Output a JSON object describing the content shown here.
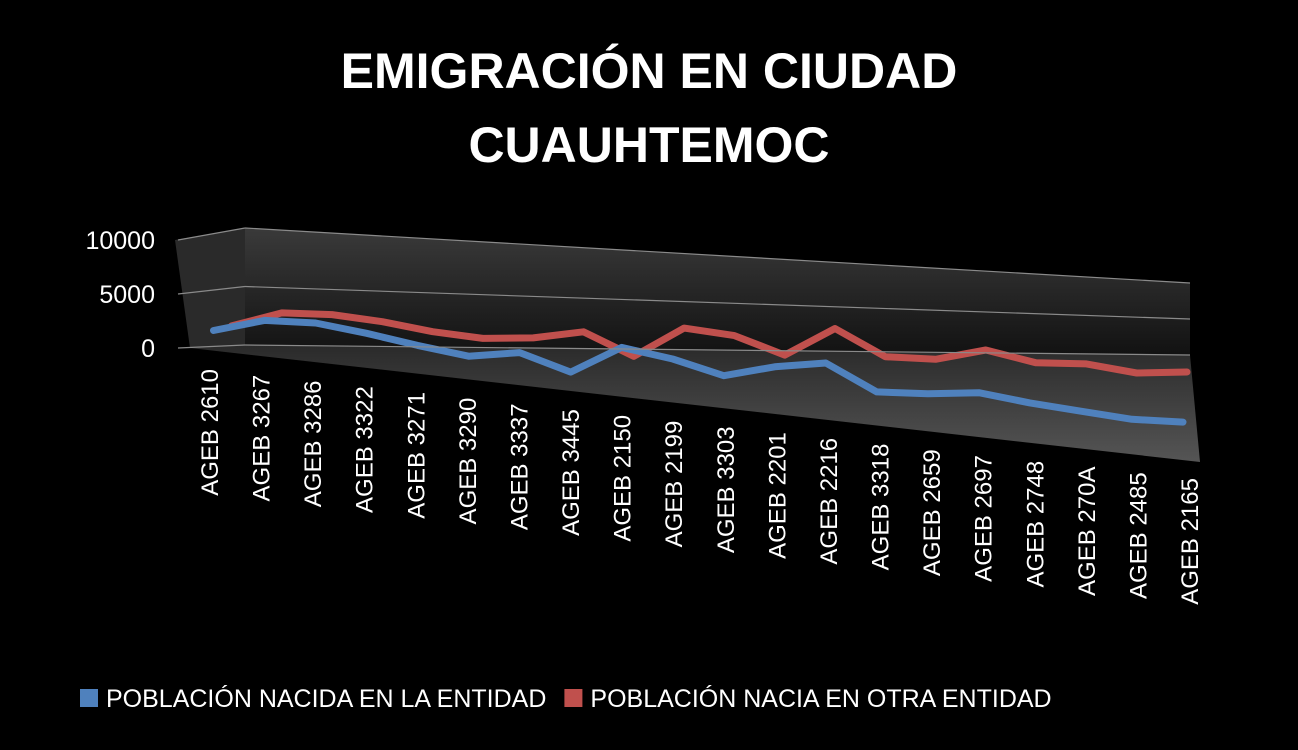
{
  "chart_data": {
    "type": "line3d",
    "title": "EMIGRACIÓN EN CIUDAD CUAUHTEMOC",
    "categories": [
      "AGEB 2610",
      "AGEB 3267",
      "AGEB 3286",
      "AGEB 3322",
      "AGEB 3271",
      "AGEB 3290",
      "AGEB 3337",
      "AGEB 3445",
      "AGEB 2150",
      "AGEB 2199",
      "AGEB 3303",
      "AGEB 2201",
      "AGEB 2216",
      "AGEB 3318",
      "AGEB 2659",
      "AGEB 2697",
      "AGEB 2748",
      "AGEB 270A",
      "AGEB 2485",
      "AGEB 2165"
    ],
    "series": [
      {
        "name": "POBLACIÓN NACIDA EN LA ENTIDAD",
        "color": "#4f81bd",
        "values": [
          1500,
          2800,
          3000,
          2500,
          1800,
          1200,
          2000,
          500,
          3500,
          2800,
          1500,
          3000,
          4000,
          1200,
          1500,
          2200,
          1500,
          1000,
          500,
          700
        ]
      },
      {
        "name": "POBLACIÓN NACIA EN OTRA ENTIDAD",
        "color": "#c0504d",
        "values": [
          1800,
          3200,
          3300,
          2900,
          2200,
          1800,
          2100,
          3000,
          700,
          4000,
          3500,
          1600,
          5000,
          2000,
          2000,
          3500,
          2200,
          2400,
          1500,
          2000
        ]
      }
    ],
    "ylim": [
      0,
      10000
    ],
    "yticks": [
      0,
      5000,
      10000
    ],
    "grid": true,
    "legend": "bottom"
  }
}
